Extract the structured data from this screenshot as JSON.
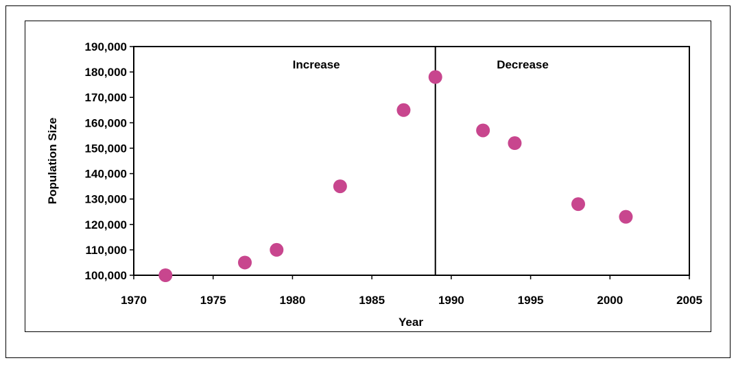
{
  "chart_data": {
    "type": "scatter",
    "title": "",
    "xlabel": "Year",
    "ylabel": "Population Size",
    "xlim": [
      1970,
      2005
    ],
    "ylim": [
      100000,
      190000
    ],
    "x_ticks": [
      1970,
      1975,
      1980,
      1985,
      1990,
      1995,
      2000,
      2005
    ],
    "y_ticks": [
      100000,
      110000,
      120000,
      130000,
      140000,
      150000,
      160000,
      170000,
      180000,
      190000
    ],
    "x_tick_labels": [
      "1970",
      "1975",
      "1980",
      "1985",
      "1990",
      "1995",
      "2000",
      "2005"
    ],
    "y_tick_labels": [
      "100,000",
      "110,000",
      "120,000",
      "130,000",
      "140,000",
      "150,000",
      "160,000",
      "170,000",
      "180,000",
      "190,000"
    ],
    "points": [
      {
        "x": 1972,
        "y": 100000
      },
      {
        "x": 1977,
        "y": 105000
      },
      {
        "x": 1979,
        "y": 110000
      },
      {
        "x": 1983,
        "y": 135000
      },
      {
        "x": 1987,
        "y": 165000
      },
      {
        "x": 1989,
        "y": 178000
      },
      {
        "x": 1992,
        "y": 157000
      },
      {
        "x": 1994,
        "y": 152000
      },
      {
        "x": 1998,
        "y": 128000
      },
      {
        "x": 2001,
        "y": 123000
      }
    ],
    "divider_x": 1989,
    "annotations": [
      {
        "text": "Increase",
        "x": 1981.5,
        "y": 183000
      },
      {
        "text": "Decrease",
        "x": 1994.5,
        "y": 183000
      }
    ],
    "grid": false,
    "legend": "none",
    "marker_color": "#C8468E",
    "axis_color": "#000000",
    "frame_color": "#000000"
  }
}
